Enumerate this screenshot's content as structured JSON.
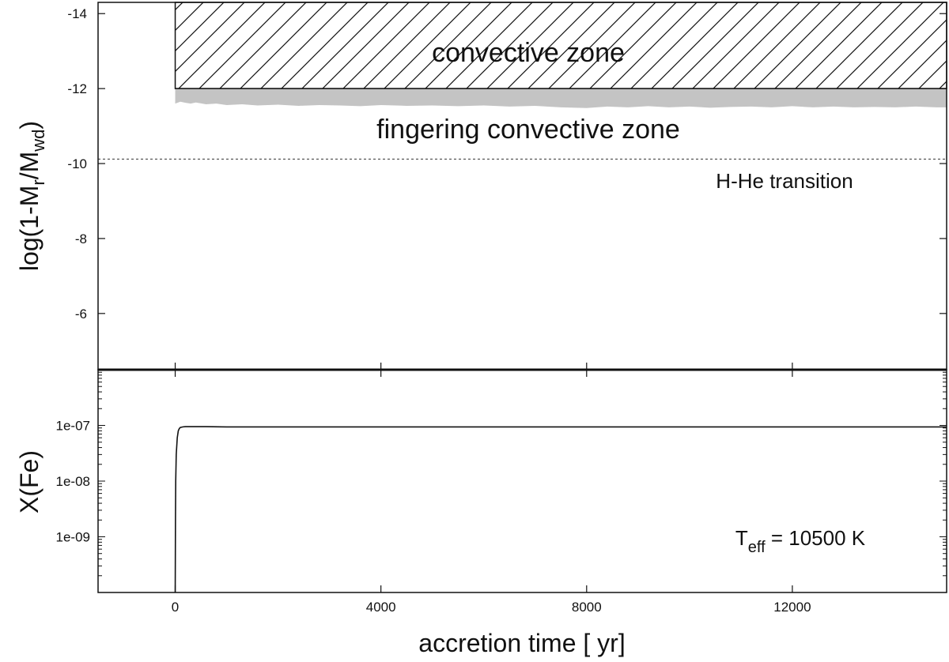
{
  "chart_data": [
    {
      "type": "area",
      "panel": "top",
      "ylabel_parts": {
        "main": "log(1-M",
        "sub1": "r",
        "mid": "/M",
        "sub2": "wd",
        "end": ")"
      },
      "ylim": [
        -4.5,
        -14.3
      ],
      "xlim": [
        -1500,
        15000
      ],
      "y_inverted": true,
      "yticks": [
        -14,
        -12,
        -10,
        -8,
        -6
      ],
      "ytick_labels": [
        "-14",
        "-12",
        "-10",
        "-8",
        "-6"
      ],
      "series": [
        {
          "kind": "hatched-band",
          "x": [
            0,
            15000
          ],
          "y_top": -14.3,
          "y_bottom": -12.0
        },
        {
          "kind": "gray-band",
          "x": [
            0,
            100,
            200,
            300,
            400,
            600,
            800,
            1000,
            1300,
            1600,
            2000,
            2400,
            2800,
            3200,
            3600,
            4000,
            4500,
            5000,
            5500,
            6000,
            6500,
            7000,
            7500,
            8000,
            8400,
            8800,
            9200,
            9600,
            10000,
            10400,
            10800,
            11200,
            11600,
            12000,
            12400,
            12800,
            13200,
            13600,
            14000,
            14400,
            14800,
            15000
          ],
          "y_top": -12.0,
          "y_bottom": [
            -11.6,
            -11.65,
            -11.62,
            -11.6,
            -11.63,
            -11.58,
            -11.6,
            -11.56,
            -11.58,
            -11.55,
            -11.57,
            -11.54,
            -11.56,
            -11.55,
            -11.53,
            -11.56,
            -11.54,
            -11.55,
            -11.53,
            -11.55,
            -11.52,
            -11.54,
            -11.5,
            -11.48,
            -11.52,
            -11.5,
            -11.53,
            -11.5,
            -11.52,
            -11.49,
            -11.51,
            -11.52,
            -11.5,
            -11.53,
            -11.5,
            -11.52,
            -11.5,
            -11.51,
            -11.5,
            -11.52,
            -11.5,
            -11.5
          ]
        },
        {
          "kind": "dotted-line",
          "y": -10.12
        }
      ],
      "annotations": {
        "convective": "convective zone",
        "fingering": "fingering convective zone",
        "transition": "H-He transition"
      }
    },
    {
      "type": "line",
      "panel": "bottom",
      "ylabel": "X(Fe)",
      "xlabel": "accretion time [ yr]",
      "y_scale": "log",
      "ylim": [
        1e-10,
        1e-06
      ],
      "xlim": [
        -1500,
        15000
      ],
      "yticks": [
        1e-07,
        1e-08,
        1e-09
      ],
      "ytick_labels": [
        "1e-07",
        "1e-08",
        "1e-09"
      ],
      "xticks": [
        0,
        4000,
        8000,
        12000
      ],
      "xtick_labels": [
        "0",
        "4000",
        "8000",
        "12000"
      ],
      "series": [
        {
          "x": [
            0,
            5,
            10,
            20,
            40,
            60,
            80,
            100,
            150,
            200,
            300,
            600,
            1000,
            2000,
            5000,
            10000,
            15000
          ],
          "y": [
            1e-10,
            2e-09,
            1e-08,
            3e-08,
            6e-08,
            8e-08,
            8.8e-08,
            9.2e-08,
            9.4e-08,
            9.5e-08,
            9.5e-08,
            9.5e-08,
            9.4e-08,
            9.4e-08,
            9.4e-08,
            9.4e-08,
            9.4e-08
          ]
        }
      ],
      "annotation_parts": {
        "main": "T",
        "sub": "eff",
        "rest": " = 10500 K"
      }
    }
  ]
}
